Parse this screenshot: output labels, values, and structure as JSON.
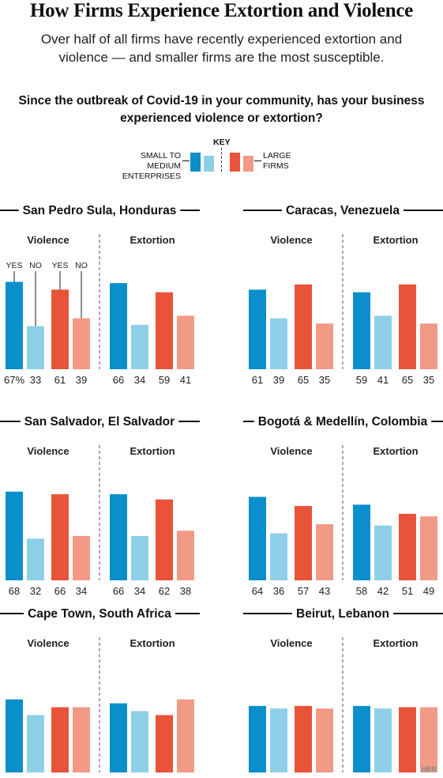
{
  "title": "How Firms Experience Extortion and Violence",
  "subtitle": "Over half of all firms have recently experienced extortion and violence — and smaller firms are the most susceptible.",
  "question": "Since the outbreak of Covid-19 in your community, has your business experienced violence or extortion?",
  "legend": {
    "key_label": "KEY",
    "sme_label_line1": "SMALL TO MEDIUM",
    "sme_label_line2": "ENTERPRISES",
    "large_label_line1": "LARGE",
    "large_label_line2": "FIRMS"
  },
  "footer": {
    "logo": "HBR"
  },
  "colors": {
    "sme_yes": "#0a8fcc",
    "sme_no": "#8ecfe8",
    "large_yes": "#e8533a",
    "large_no": "#f19a86"
  },
  "chart_data": [
    {
      "type": "bar",
      "title": "San Pedro Sula, Honduras",
      "groups": [
        "Violence",
        "Extortion"
      ],
      "categories": [
        "YES",
        "NO",
        "YES",
        "NO"
      ],
      "category_labels_shown": true,
      "first_value_suffix": "%",
      "series": [
        {
          "group": "Violence",
          "values": [
            67,
            33,
            61,
            39
          ]
        },
        {
          "group": "Extortion",
          "values": [
            66,
            34,
            59,
            41
          ]
        }
      ],
      "ylim": [
        0,
        100
      ]
    },
    {
      "type": "bar",
      "title": "Caracas, Venezuela",
      "groups": [
        "Violence",
        "Extortion"
      ],
      "series": [
        {
          "group": "Violence",
          "values": [
            61,
            39,
            65,
            35
          ]
        },
        {
          "group": "Extortion",
          "values": [
            59,
            41,
            65,
            35
          ]
        }
      ],
      "ylim": [
        0,
        100
      ]
    },
    {
      "type": "bar",
      "title": "San Salvador, El Salvador",
      "groups": [
        "Violence",
        "Extortion"
      ],
      "series": [
        {
          "group": "Violence",
          "values": [
            68,
            32,
            66,
            34
          ]
        },
        {
          "group": "Extortion",
          "values": [
            66,
            34,
            62,
            38
          ]
        }
      ],
      "ylim": [
        0,
        100
      ]
    },
    {
      "type": "bar",
      "title": "Bogotá & Medellín, Colombia",
      "groups": [
        "Violence",
        "Extortion"
      ],
      "series": [
        {
          "group": "Violence",
          "values": [
            64,
            36,
            57,
            43
          ]
        },
        {
          "group": "Extortion",
          "values": [
            58,
            42,
            51,
            49
          ]
        }
      ],
      "ylim": [
        0,
        100
      ]
    },
    {
      "type": "bar",
      "title": "Cape Town, South Africa",
      "groups": [
        "Violence",
        "Extortion"
      ],
      "series": [
        {
          "group": "Violence",
          "values": [
            56,
            44,
            50,
            50
          ]
        },
        {
          "group": "Extortion",
          "values": [
            53,
            47,
            44,
            56
          ]
        }
      ],
      "ylim": [
        0,
        100
      ]
    },
    {
      "type": "bar",
      "title": "Beirut, Lebanon",
      "groups": [
        "Violence",
        "Extortion"
      ],
      "series": [
        {
          "group": "Violence",
          "values": [
            51,
            49,
            51,
            49
          ]
        },
        {
          "group": "Extortion",
          "values": [
            51,
            49,
            50,
            50
          ]
        }
      ],
      "ylim": [
        0,
        100
      ]
    }
  ]
}
